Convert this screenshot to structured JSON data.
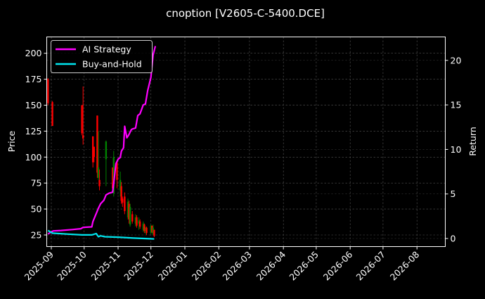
{
  "figure": {
    "title": "cnoption [V2605-C-5400.DCE]",
    "background": "#000000"
  },
  "legend": {
    "items": [
      {
        "label": "AI Strategy",
        "color": "#ff00ff"
      },
      {
        "label": "Buy-and-Hold",
        "color": "#00e5ee"
      }
    ]
  },
  "axes": {
    "left_label": "Price",
    "right_label": "Return",
    "left_ticks": [
      "25",
      "50",
      "75",
      "100",
      "125",
      "150",
      "175",
      "200"
    ],
    "right_ticks": [
      "0",
      "5",
      "10",
      "15",
      "20"
    ],
    "x_ticks": [
      "2025-09",
      "2025-10",
      "2025-11",
      "2025-12",
      "2026-01",
      "2026-02",
      "2026-03",
      "2026-04",
      "2026-05",
      "2026-06",
      "2026-07",
      "2026-08"
    ]
  },
  "chart_data": {
    "type": "line",
    "title": "cnoption [V2605-C-5400.DCE]",
    "xlabel": "",
    "ylabel": "Price",
    "ylabel_right": "Return",
    "ylim": [
      15,
      218
    ],
    "ylim_right": [
      -0.8,
      22.8
    ],
    "xlim": [
      "2025-08-28",
      "2026-08-31"
    ],
    "grid": true,
    "legend_position": "upper left",
    "x_tick_labels": [
      "2025-09",
      "2025-10",
      "2025-11",
      "2025-12",
      "2026-01",
      "2026-02",
      "2026-03",
      "2026-04",
      "2026-05",
      "2026-06",
      "2026-07",
      "2026-08"
    ],
    "y_tick_labels": [
      25,
      50,
      75,
      100,
      125,
      150,
      175,
      200
    ],
    "y_right_tick_labels": [
      0,
      5,
      10,
      15,
      20
    ],
    "candlestick": {
      "up_color": "#008000",
      "down_color": "#ff0000",
      "bars": [
        {
          "date": "2025-08-29",
          "open": 175,
          "high": 176,
          "low": 150,
          "close": 152
        },
        {
          "date": "2025-09-02",
          "open": 153,
          "high": 154,
          "low": 130,
          "close": 130
        },
        {
          "date": "2025-09-29",
          "open": 150,
          "high": 150,
          "low": 121,
          "close": 123
        },
        {
          "date": "2025-09-30",
          "open": 121,
          "high": 168,
          "low": 112,
          "close": 118
        },
        {
          "date": "2025-10-09",
          "open": 120,
          "high": 120,
          "low": 90,
          "close": 95
        },
        {
          "date": "2025-10-10",
          "open": 110,
          "high": 110,
          "low": 95,
          "close": 100
        },
        {
          "date": "2025-10-13",
          "open": 140,
          "high": 140,
          "low": 80,
          "close": 85
        },
        {
          "date": "2025-10-14",
          "open": 80,
          "high": 125,
          "low": 78,
          "close": 90
        },
        {
          "date": "2025-10-15",
          "open": 78,
          "high": 88,
          "low": 68,
          "close": 72
        },
        {
          "date": "2025-10-21",
          "open": 98,
          "high": 116,
          "low": 72,
          "close": 115
        },
        {
          "date": "2025-10-27",
          "open": 90,
          "high": 90,
          "low": 66,
          "close": 70
        },
        {
          "date": "2025-10-28",
          "open": 65,
          "high": 106,
          "low": 62,
          "close": 100
        },
        {
          "date": "2025-10-31",
          "open": 95,
          "high": 95,
          "low": 70,
          "close": 78
        },
        {
          "date": "2025-11-03",
          "open": 68,
          "high": 86,
          "low": 62,
          "close": 78
        },
        {
          "date": "2025-11-04",
          "open": 72,
          "high": 76,
          "low": 55,
          "close": 58
        },
        {
          "date": "2025-11-05",
          "open": 60,
          "high": 62,
          "low": 52,
          "close": 56
        },
        {
          "date": "2025-11-07",
          "open": 62,
          "high": 66,
          "low": 45,
          "close": 48
        },
        {
          "date": "2025-11-10",
          "open": 42,
          "high": 60,
          "low": 40,
          "close": 57
        },
        {
          "date": "2025-11-11",
          "open": 55,
          "high": 58,
          "low": 36,
          "close": 40
        },
        {
          "date": "2025-11-12",
          "open": 35,
          "high": 55,
          "low": 33,
          "close": 52
        },
        {
          "date": "2025-11-14",
          "open": 45,
          "high": 48,
          "low": 36,
          "close": 38
        },
        {
          "date": "2025-11-17",
          "open": 36,
          "high": 45,
          "low": 33,
          "close": 42
        },
        {
          "date": "2025-11-18",
          "open": 42,
          "high": 44,
          "low": 32,
          "close": 34
        },
        {
          "date": "2025-11-20",
          "open": 36,
          "high": 42,
          "low": 30,
          "close": 39
        },
        {
          "date": "2025-11-21",
          "open": 38,
          "high": 40,
          "low": 31,
          "close": 33
        },
        {
          "date": "2025-11-24",
          "open": 30,
          "high": 38,
          "low": 28,
          "close": 36
        },
        {
          "date": "2025-11-25",
          "open": 35,
          "high": 36,
          "low": 27,
          "close": 29
        },
        {
          "date": "2025-11-26",
          "open": 30,
          "high": 33,
          "low": 26,
          "close": 31
        },
        {
          "date": "2025-11-27",
          "open": 32,
          "high": 33,
          "low": 25,
          "close": 27
        },
        {
          "date": "2025-12-01",
          "open": 27,
          "high": 35,
          "low": 26,
          "close": 34
        },
        {
          "date": "2025-12-02",
          "open": 34,
          "high": 34,
          "low": 27,
          "close": 28
        },
        {
          "date": "2025-12-03",
          "open": 26,
          "high": 35,
          "low": 25,
          "close": 32
        },
        {
          "date": "2025-12-04",
          "open": 30,
          "high": 30,
          "low": 23,
          "close": 24
        }
      ]
    },
    "series": [
      {
        "name": "AI Strategy",
        "axis": "right",
        "color": "#ff00ff",
        "x": [
          "2025-08-29",
          "2025-09-01",
          "2025-09-03",
          "2025-09-10",
          "2025-09-20",
          "2025-09-28",
          "2025-09-30",
          "2025-10-08",
          "2025-10-09",
          "2025-10-12",
          "2025-10-14",
          "2025-10-16",
          "2025-10-19",
          "2025-10-21",
          "2025-10-24",
          "2025-10-27",
          "2025-10-28",
          "2025-10-30",
          "2025-11-01",
          "2025-11-03",
          "2025-11-04",
          "2025-11-06",
          "2025-11-07",
          "2025-11-09",
          "2025-11-11",
          "2025-11-13",
          "2025-11-14",
          "2025-11-17",
          "2025-11-19",
          "2025-11-21",
          "2025-11-24",
          "2025-11-26",
          "2025-11-28",
          "2025-12-01",
          "2025-12-03",
          "2025-12-05"
        ],
        "values": [
          0.5,
          0.75,
          0.85,
          0.9,
          1.0,
          1.1,
          1.25,
          1.3,
          1.9,
          2.8,
          3.4,
          3.9,
          4.3,
          4.9,
          5.1,
          5.2,
          6.2,
          8.4,
          8.9,
          9.1,
          9.8,
          10.2,
          12.6,
          11.3,
          11.7,
          12.2,
          12.3,
          12.4,
          13.8,
          14.0,
          15.0,
          15.1,
          16.6,
          18.1,
          20.6,
          21.6
        ]
      },
      {
        "name": "Buy-and-Hold",
        "axis": "right",
        "color": "#00e5ee",
        "x": [
          "2025-08-29",
          "2025-09-02",
          "2025-09-15",
          "2025-09-29",
          "2025-10-08",
          "2025-10-12",
          "2025-10-14",
          "2025-10-16",
          "2025-10-20",
          "2025-11-01",
          "2025-11-15",
          "2025-12-04"
        ],
        "values": [
          0.9,
          0.6,
          0.5,
          0.4,
          0.4,
          0.55,
          0.2,
          0.3,
          0.2,
          0.15,
          0.05,
          -0.05
        ]
      }
    ]
  }
}
